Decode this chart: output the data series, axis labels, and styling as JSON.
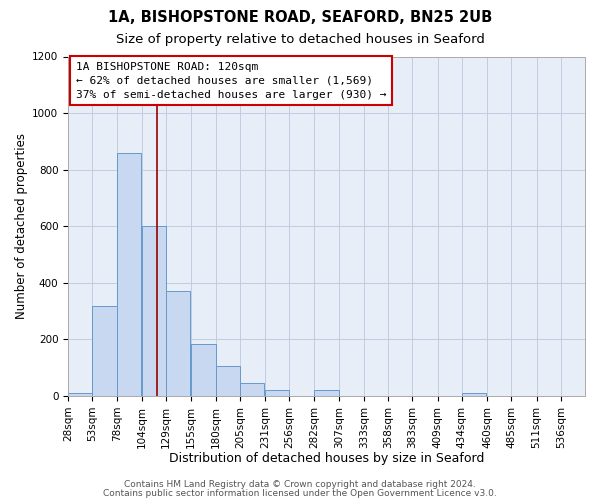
{
  "title": "1A, BISHOPSTONE ROAD, SEAFORD, BN25 2UB",
  "subtitle": "Size of property relative to detached houses in Seaford",
  "xlabel": "Distribution of detached houses by size in Seaford",
  "ylabel": "Number of detached properties",
  "bar_left_edges": [
    28,
    53,
    78,
    104,
    129,
    155,
    180,
    205,
    231,
    256,
    282,
    307,
    333,
    358,
    383,
    409,
    434,
    460,
    485,
    511
  ],
  "bar_heights": [
    10,
    318,
    858,
    600,
    370,
    185,
    105,
    45,
    20,
    0,
    20,
    0,
    0,
    0,
    0,
    0,
    10,
    0,
    0,
    0
  ],
  "bin_width": 25,
  "bar_color": "#c8d8f0",
  "bar_edgecolor": "#6699cc",
  "figure_background_color": "#ffffff",
  "axes_background_color": "#e8eef8",
  "grid_color": "#c0cce0",
  "tick_labels": [
    "28sqm",
    "53sqm",
    "78sqm",
    "104sqm",
    "129sqm",
    "155sqm",
    "180sqm",
    "205sqm",
    "231sqm",
    "256sqm",
    "282sqm",
    "307sqm",
    "333sqm",
    "358sqm",
    "383sqm",
    "409sqm",
    "434sqm",
    "460sqm",
    "485sqm",
    "511sqm",
    "536sqm"
  ],
  "property_size": 120,
  "vline_color": "#990000",
  "annotation_line1": "1A BISHOPSTONE ROAD: 120sqm",
  "annotation_line2": "← 62% of detached houses are smaller (1,569)",
  "annotation_line3": "37% of semi-detached houses are larger (930) →",
  "annotation_box_facecolor": "#ffffff",
  "annotation_box_edgecolor": "#cc0000",
  "ylim": [
    0,
    1200
  ],
  "yticks": [
    0,
    200,
    400,
    600,
    800,
    1000,
    1200
  ],
  "footer_line1": "Contains HM Land Registry data © Crown copyright and database right 2024.",
  "footer_line2": "Contains public sector information licensed under the Open Government Licence v3.0.",
  "title_fontsize": 10.5,
  "subtitle_fontsize": 9.5,
  "xlabel_fontsize": 9,
  "ylabel_fontsize": 8.5,
  "tick_fontsize": 7.5,
  "annotation_fontsize": 8,
  "footer_fontsize": 6.5
}
